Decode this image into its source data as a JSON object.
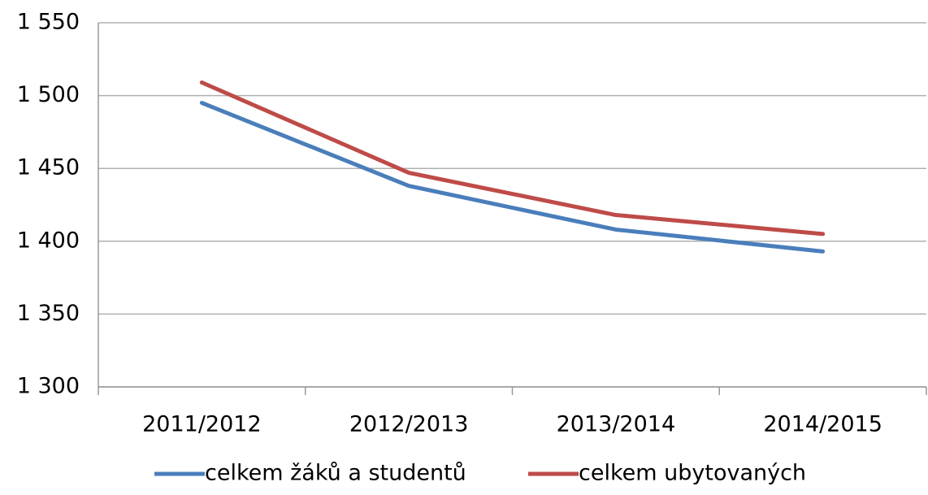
{
  "chart_data": {
    "type": "line",
    "categories": [
      "2011/2012",
      "2012/2013",
      "2013/2014",
      "2014/2015"
    ],
    "series": [
      {
        "name": "celkem žáků a studentů",
        "color": "#4a7ebb",
        "values": [
          1495,
          1438,
          1408,
          1393
        ]
      },
      {
        "name": "celkem ubytovaných",
        "color": "#be4b48",
        "values": [
          1509,
          1447,
          1418,
          1405
        ]
      }
    ],
    "ylim": [
      1300,
      1550
    ],
    "yticks": [
      {
        "value": 1300,
        "label": "1 300"
      },
      {
        "value": 1350,
        "label": "1 350"
      },
      {
        "value": 1400,
        "label": "1 400"
      },
      {
        "value": 1450,
        "label": "1 450"
      },
      {
        "value": 1500,
        "label": "1 500"
      },
      {
        "value": 1550,
        "label": "1 550"
      }
    ],
    "grid": true,
    "legend": "bottom"
  }
}
